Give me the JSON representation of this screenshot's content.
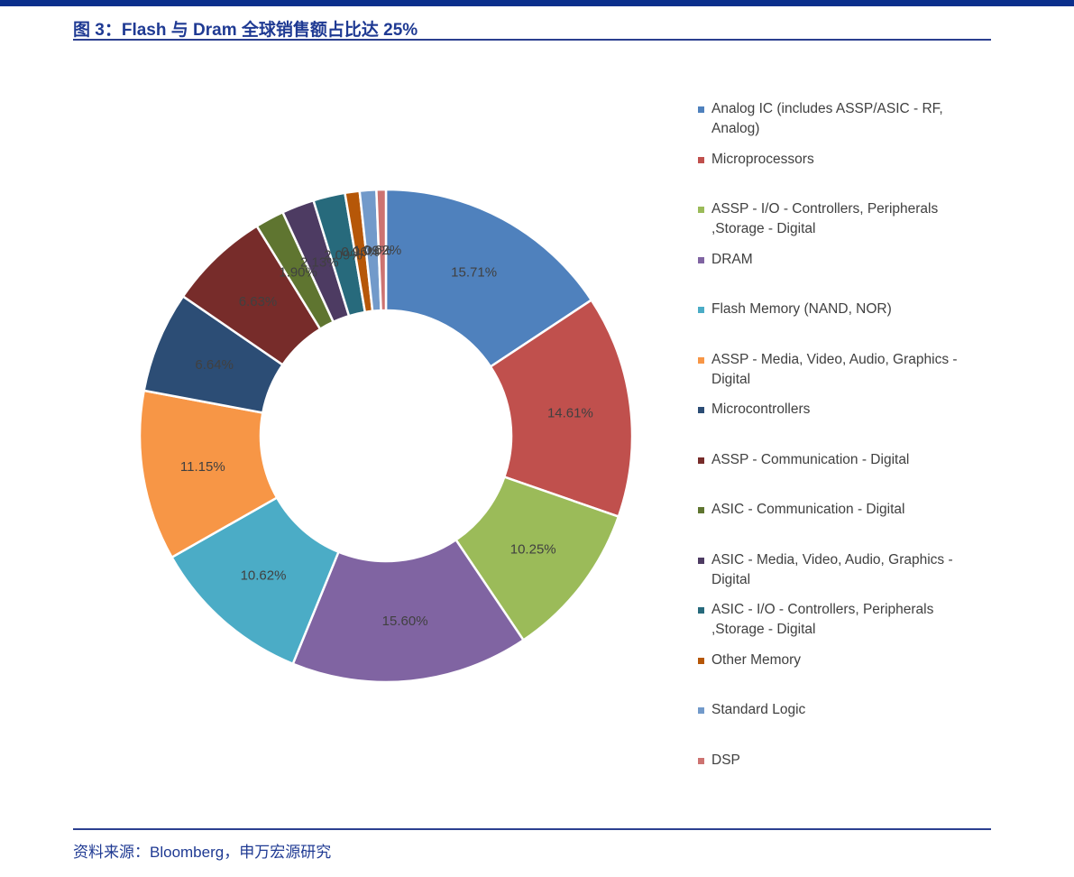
{
  "header": {
    "title": "图 3：Flash 与 Dram 全球销售额占比达 25%"
  },
  "footer": {
    "source": "资料来源：Bloomberg，申万宏源研究"
  },
  "colors": {
    "top_bar": "#0b2f8c",
    "title": "#1f3a93",
    "rule": "#2b3f8f"
  },
  "chart_data": {
    "type": "pie",
    "variant": "donut",
    "legend_position": "right",
    "categories": [
      "Analog IC (includes ASSP/ASIC - RF, Analog)",
      "Microprocessors",
      "ASSP - I/O - Controllers, Peripherals ,Storage - Digital",
      "DRAM",
      "Flash Memory (NAND, NOR)",
      "ASSP - Media, Video, Audio, Graphics - Digital",
      "Microcontrollers",
      "ASSP - Communication - Digital",
      "ASIC - Communication - Digital",
      "ASIC - Media, Video, Audio, Graphics - Digital",
      "ASIC - I/O - Controllers, Peripherals ,Storage - Digital",
      "Other Memory",
      "Standard Logic",
      "DSP"
    ],
    "legend_lines": [
      [
        "Analog IC (includes ASSP/ASIC - RF,",
        "Analog)"
      ],
      [
        "Microprocessors"
      ],
      [
        "ASSP - I/O - Controllers, Peripherals",
        ",Storage - Digital"
      ],
      [
        "DRAM"
      ],
      [
        "Flash Memory (NAND, NOR)"
      ],
      [
        "ASSP - Media, Video, Audio, Graphics -",
        "Digital"
      ],
      [
        "Microcontrollers"
      ],
      [
        "ASSP - Communication - Digital"
      ],
      [
        "ASIC - Communication - Digital"
      ],
      [
        "ASIC - Media, Video, Audio, Graphics -",
        "Digital"
      ],
      [
        "ASIC - I/O - Controllers, Peripherals",
        ",Storage - Digital"
      ],
      [
        "Other Memory"
      ],
      [
        "Standard Logic"
      ],
      [
        "DSP"
      ]
    ],
    "values": [
      15.71,
      14.61,
      10.25,
      15.6,
      10.62,
      11.15,
      6.64,
      6.63,
      1.9,
      2.13,
      2.09,
      0.96,
      1.09,
      0.62
    ],
    "labels": [
      "15.71%",
      "14.61%",
      "10.25%",
      "15.60%",
      "10.62%",
      "11.15%",
      "6.64%",
      "6.63%",
      "1.90%",
      "2.13%",
      "2.09%",
      "0.96%",
      "1.09%",
      "0.62%"
    ],
    "colors": [
      "#4f81bd",
      "#c0504d",
      "#9bbb59",
      "#8064a2",
      "#4bacc6",
      "#f79646",
      "#2c4d75",
      "#772c2a",
      "#5f7530",
      "#4d3b62",
      "#276a7c",
      "#b65708",
      "#729aca",
      "#cd7371"
    ]
  }
}
